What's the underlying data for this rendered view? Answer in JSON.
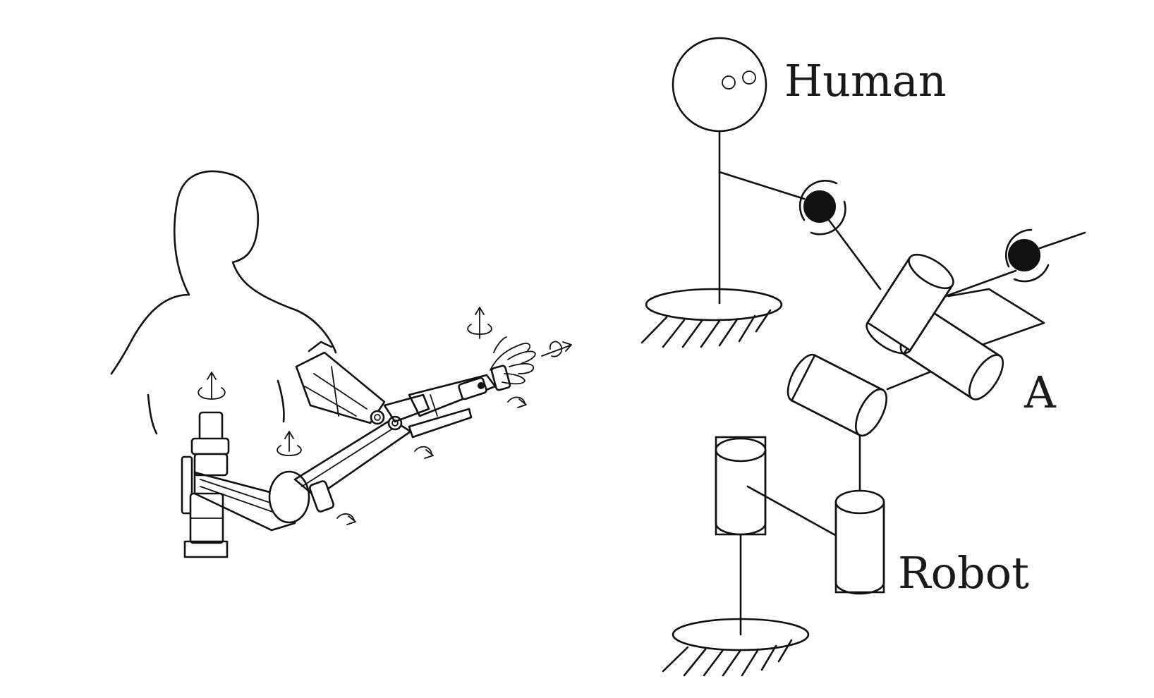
{
  "labels": {
    "human": "Human",
    "a": "A",
    "robot": "Robot"
  },
  "colors": {
    "ink": "#111111",
    "background": "#ffffff"
  }
}
